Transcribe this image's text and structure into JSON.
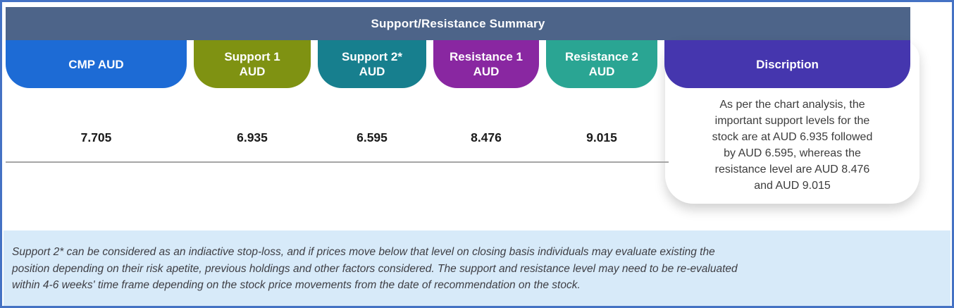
{
  "title": "Support/Resistance Summary",
  "colors": {
    "border": "#4472C4",
    "header_bar": "#4D6489",
    "footnote_bg": "#D7EAF9",
    "divider": "#A6A6A6"
  },
  "columns": [
    {
      "id": "cmp",
      "label_lines": [
        "CMP AUD"
      ],
      "color": "#1D6BD5",
      "value": "7.705"
    },
    {
      "id": "support1",
      "label_lines": [
        "Support 1",
        "AUD"
      ],
      "color": "#7F9212",
      "value": "6.935"
    },
    {
      "id": "support2",
      "label_lines": [
        "Support 2*",
        "AUD"
      ],
      "color": "#177F8E",
      "value": "6.595"
    },
    {
      "id": "resistance1",
      "label_lines": [
        "Resistance 1",
        "AUD"
      ],
      "color": "#8927A1",
      "value": "8.476"
    },
    {
      "id": "resistance2",
      "label_lines": [
        "Resistance 2",
        "AUD"
      ],
      "color": "#2AA593",
      "value": "9.015"
    },
    {
      "id": "description",
      "label_lines": [
        "Discription"
      ],
      "color": "#4536AE",
      "value": ""
    }
  ],
  "description_lines": [
    "As per the chart analysis, the",
    "important support levels for the",
    "stock are at AUD 6.935 followed",
    "by AUD 6.595, whereas the",
    "resistance level are AUD 8.476",
    "and AUD 9.015"
  ],
  "footnote_lines": [
    "Support 2* can be considered as an indiactive stop-loss, and if prices move below that level on closing basis individuals may evaluate existing the",
    "position depending on their risk apetite, previous holdings and other factors considered. The support and resistance level may need to be re-evaluated",
    "within 4-6 weeks' time frame depending on the stock price movements from  the date of recommendation on the stock."
  ]
}
